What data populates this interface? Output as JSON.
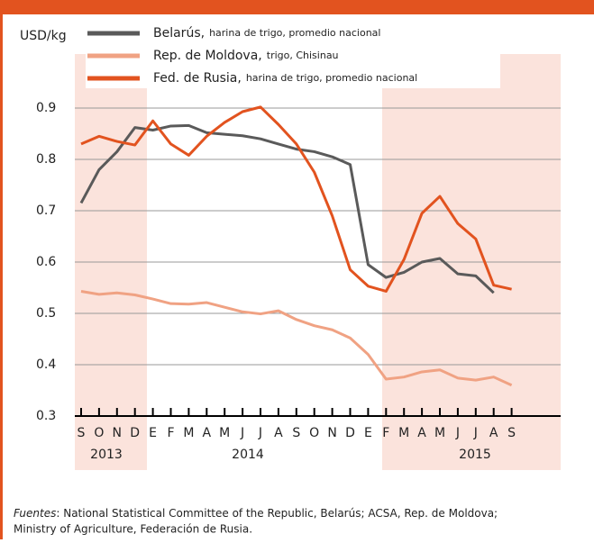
{
  "chart_data": {
    "type": "line",
    "y_label": "USD/kg",
    "categories": [
      "S",
      "O",
      "N",
      "D",
      "E",
      "F",
      "M",
      "A",
      "M",
      "J",
      "J",
      "A",
      "S",
      "O",
      "N",
      "D",
      "E",
      "F",
      "M",
      "A",
      "M",
      "J",
      "J",
      "A",
      "S"
    ],
    "year_labels": [
      "2013",
      "2014",
      "2015"
    ],
    "ylim": [
      0.3,
      1.0
    ],
    "yticks": [
      0.3,
      0.4,
      0.5,
      0.6,
      0.7,
      0.8,
      0.9
    ],
    "grid": true,
    "series": [
      {
        "name": "Belarús,",
        "detail": "harina de trigo, promedio nacional",
        "color": "#5a5a5a",
        "values": [
          0.715,
          0.78,
          0.815,
          0.862,
          0.857,
          0.865,
          0.866,
          0.852,
          0.849,
          0.846,
          0.84,
          0.83,
          0.82,
          0.815,
          0.805,
          0.79,
          0.595,
          0.57,
          0.58,
          0.6,
          0.607,
          0.577,
          0.573,
          0.54,
          null
        ]
      },
      {
        "name": "Rep. de Moldova,",
        "detail": "trigo, Chisinau",
        "color": "#f0a283",
        "values": [
          0.543,
          0.537,
          0.54,
          0.536,
          0.528,
          0.519,
          0.518,
          0.521,
          0.512,
          0.503,
          0.499,
          0.505,
          0.488,
          0.476,
          0.468,
          0.452,
          0.42,
          0.372,
          0.376,
          0.386,
          0.39,
          0.374,
          0.37,
          0.376,
          0.36
        ]
      },
      {
        "name": "Fed. de Rusia,",
        "detail": "harina de trigo, promedio nacional",
        "color": "#e2531f",
        "values": [
          0.83,
          0.845,
          0.835,
          0.828,
          0.875,
          0.83,
          0.808,
          0.845,
          0.872,
          0.893,
          0.902,
          0.868,
          0.83,
          0.775,
          0.69,
          0.585,
          0.553,
          0.543,
          0.605,
          0.695,
          0.728,
          0.675,
          0.645,
          0.555,
          0.547
        ]
      }
    ],
    "source_label": "Fuentes",
    "source_line1": ": National Statistical Committee of the Republic, Belarús; ACSA, Rep. de Moldova;",
    "source_line2": "Ministry of Agriculture, Federación de Rusia."
  }
}
